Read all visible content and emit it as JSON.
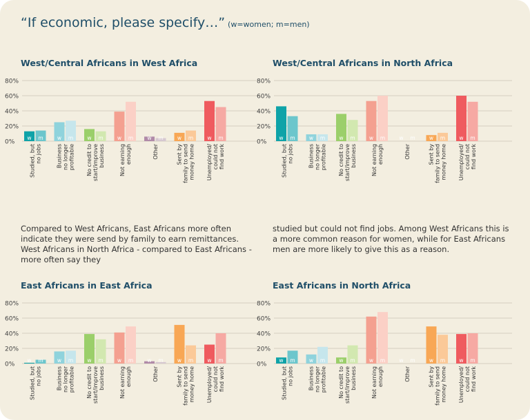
{
  "header": {
    "title": "“If economic, please specify…”",
    "subtitle": "(w=women; m=men)"
  },
  "text": {
    "left": "Compared to West Africans, East Africans more often indicate they were send by family to earn remittances. West Africans in North Africa - compared to East Africans - more often say they",
    "right": "studied but could not find jobs. Among West Africans this is a more common reason for women, while for East Africans men are more likely to give this as a reason."
  },
  "chart_data": [
    {
      "type": "bar",
      "title": "West/Central Africans in West Africa",
      "categories": [
        [
          "Studied, but",
          "no jobs"
        ],
        [
          "Business",
          "no longer",
          "profitable"
        ],
        [
          "No credit to",
          "start/improve",
          "business"
        ],
        [
          "Not earning",
          "enough"
        ],
        [
          "Other"
        ],
        [
          "Sent by",
          "family to send",
          "money home"
        ],
        [
          "Unemployed/",
          "could not",
          "find work"
        ]
      ],
      "series": [
        {
          "name": "w",
          "values": [
            13,
            25,
            16,
            39,
            6,
            11,
            53
          ]
        },
        {
          "name": "m",
          "values": [
            14,
            27,
            13,
            52,
            4,
            14,
            45
          ]
        }
      ],
      "ylim": [
        0,
        80
      ],
      "yticks": [
        "0%",
        "20%",
        "40%",
        "60%",
        "80%"
      ]
    },
    {
      "type": "bar",
      "title": "West/Central Africans in North Africa",
      "categories": [
        [
          "Studied, but",
          "no jobs"
        ],
        [
          "Business",
          "no longer",
          "profitable"
        ],
        [
          "No credit to",
          "start/improve",
          "business"
        ],
        [
          "Not earning",
          "enough"
        ],
        [
          "Other"
        ],
        [
          "Sent by",
          "family to send",
          "money home"
        ],
        [
          "Unemployed/",
          "could not",
          "find work"
        ]
      ],
      "series": [
        {
          "name": "w",
          "values": [
            46,
            9,
            36,
            53,
            0,
            8,
            60
          ]
        },
        {
          "name": "m",
          "values": [
            33,
            9,
            28,
            60,
            0,
            11,
            52
          ]
        }
      ],
      "ylim": [
        0,
        80
      ],
      "yticks": [
        "0%",
        "20%",
        "40%",
        "60%",
        "80%"
      ]
    },
    {
      "type": "bar",
      "title": "East Africans in East Africa",
      "categories": [
        [
          "Studied, but",
          "no jobs"
        ],
        [
          "Business",
          "no longer",
          "profitable"
        ],
        [
          "No credit to",
          "start/improve",
          "business"
        ],
        [
          "Not earning",
          "enough"
        ],
        [
          "Other"
        ],
        [
          "Sent by",
          "family to send",
          "money home"
        ],
        [
          "Unemployed/",
          "could not",
          "find work"
        ]
      ],
      "series": [
        {
          "name": "w",
          "values": [
            1,
            16,
            39,
            41,
            3,
            51,
            25
          ]
        },
        {
          "name": "m",
          "values": [
            5,
            17,
            32,
            49,
            2,
            24,
            40
          ]
        }
      ],
      "ylim": [
        0,
        80
      ],
      "yticks": [
        "0%",
        "20%",
        "40%",
        "60%",
        "80%"
      ]
    },
    {
      "type": "bar",
      "title": "East Africans in North Africa",
      "categories": [
        [
          "Studied, but",
          "no jobs"
        ],
        [
          "Business",
          "no longer",
          "profitable"
        ],
        [
          "No credit to",
          "start/improve",
          "business"
        ],
        [
          "Not earning",
          "enough"
        ],
        [
          "Other"
        ],
        [
          "Sent by",
          "family to send",
          "money home"
        ],
        [
          "Unemployed/",
          "could not",
          "find work"
        ]
      ],
      "series": [
        {
          "name": "w",
          "values": [
            8,
            12,
            8,
            62,
            0,
            49,
            39
          ]
        },
        {
          "name": "m",
          "values": [
            17,
            22,
            24,
            68,
            0,
            38,
            40
          ]
        }
      ],
      "ylim": [
        0,
        80
      ],
      "yticks": [
        "0%",
        "20%",
        "40%",
        "60%",
        "80%"
      ]
    }
  ],
  "colors": {
    "w": [
      "#0fa3a8",
      "#8fd3dc",
      "#9bcf6a",
      "#f4a090",
      "#b08aa8",
      "#f8a755",
      "#ef5b5f"
    ],
    "m": [
      "#6cc6cc",
      "#c6e6ec",
      "#d2e8b0",
      "#fbd0c6",
      "#d6c8d0",
      "#fbc998",
      "#f6a9a3"
    ],
    "grid": "#d5cfbf",
    "title": "#1f4e68"
  }
}
